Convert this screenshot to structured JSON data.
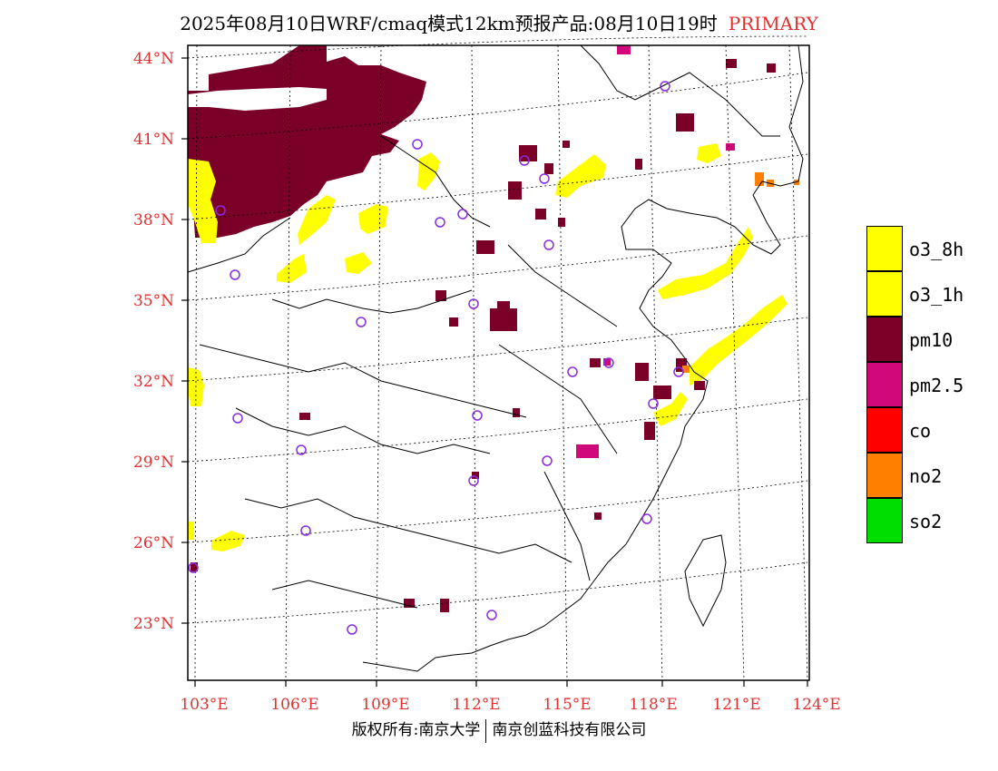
{
  "header": {
    "title": "2025年08月10日WRF/cmaq模式12km预报产品:08月10日19时",
    "status": "PRIMARY"
  },
  "axes": {
    "lat_labels": [
      "44°N",
      "41°N",
      "38°N",
      "35°N",
      "32°N",
      "29°N",
      "26°N",
      "23°N"
    ],
    "lon_labels": [
      "103°E",
      "106°E",
      "109°E",
      "112°E",
      "115°E",
      "118°E",
      "121°E",
      "124°E"
    ]
  },
  "legend": {
    "items": [
      {
        "label": "o3_8h",
        "color": "#ffff00"
      },
      {
        "label": "o3_1h",
        "color": "#ffff00"
      },
      {
        "label": "pm10",
        "color": "#7a0028"
      },
      {
        "label": "pm2.5",
        "color": "#d0087a"
      },
      {
        "label": "co",
        "color": "#ff0000"
      },
      {
        "label": "no2",
        "color": "#ff7f00"
      },
      {
        "label": "so2",
        "color": "#00dd00"
      }
    ]
  },
  "footer": {
    "left": "版权所有:南京大学",
    "right": "南京创蓝科技有限公司"
  },
  "colors": {
    "axis_label": "#e03030",
    "o3": "#ffff00",
    "pm10": "#7a0028",
    "pm25": "#d0087a",
    "no2": "#ff7f00",
    "station": "#8a2be2"
  }
}
